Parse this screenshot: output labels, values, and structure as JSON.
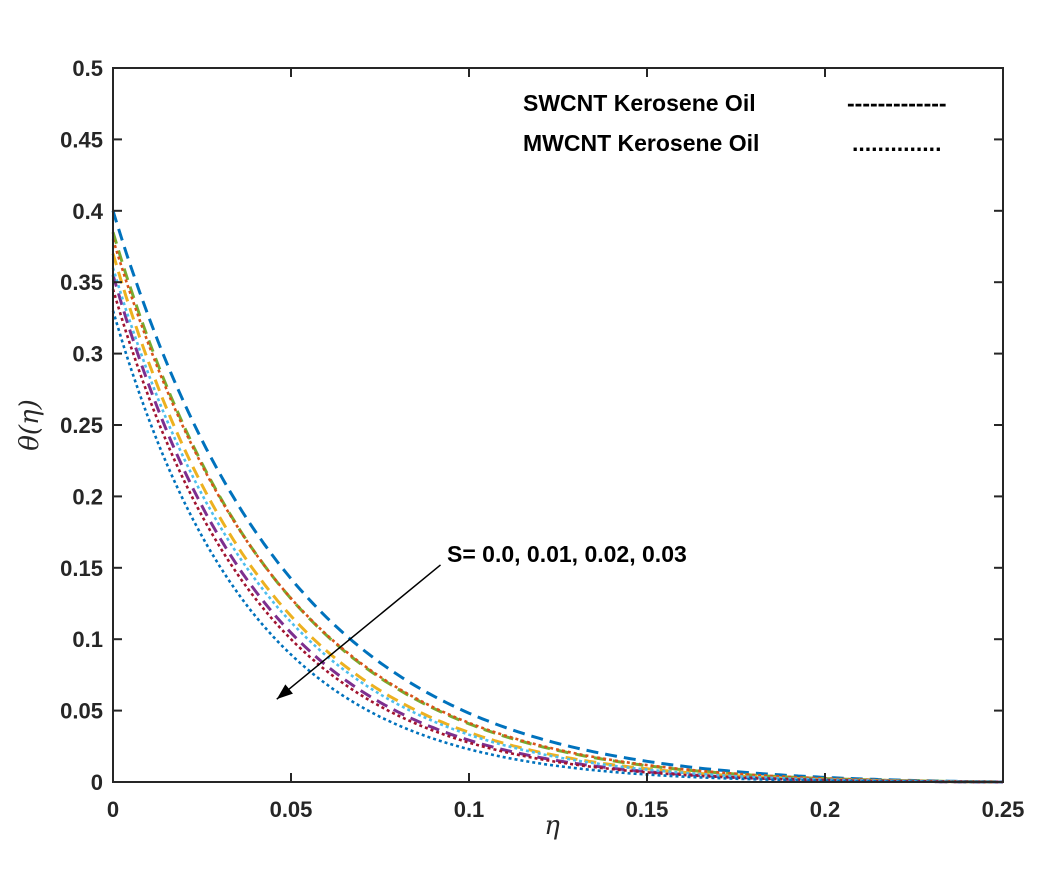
{
  "chart_data": {
    "type": "line",
    "title": "",
    "xlabel": "η",
    "ylabel": "θ(η)",
    "xlim": [
      0,
      0.25
    ],
    "ylim": [
      0,
      0.5
    ],
    "xticks": [
      0,
      0.05,
      0.1,
      0.15,
      0.2,
      0.25
    ],
    "xtick_labels": [
      "0",
      "0.05",
      "0.1",
      "0.15",
      "0.2",
      "0.25"
    ],
    "yticks": [
      0,
      0.05,
      0.1,
      0.15,
      0.2,
      0.25,
      0.3,
      0.35,
      0.4,
      0.45,
      0.5
    ],
    "ytick_labels": [
      "0",
      "0.05",
      "0.1",
      "0.15",
      "0.2",
      "0.25",
      "0.3",
      "0.35",
      "0.4",
      "0.45",
      "0.5"
    ],
    "grid": false,
    "legend": {
      "placement": "top-right",
      "entries": [
        {
          "label": "SWCNT Kerosene Oil",
          "sample": "-------------"
        },
        {
          "label": "MWCNT Kerosene Oil",
          "sample": ".............."
        }
      ]
    },
    "annotation": {
      "text": "S= 0.0, 0.01, 0.02, 0.03",
      "arrow_from": [
        0.092,
        0.152
      ],
      "arrow_to": [
        0.046,
        0.058
      ]
    },
    "series": [
      {
        "name": "SWCNT S=0.0",
        "fluid": "SWCNT",
        "S": 0.0,
        "color": "#0072BD",
        "style": "dashed",
        "theta0": 0.4,
        "decay": 20.5
      },
      {
        "name": "SWCNT S=0.01",
        "fluid": "SWCNT",
        "S": 0.01,
        "color": "#77AC30",
        "style": "dashed",
        "theta0": 0.385,
        "decay": 21.8
      },
      {
        "name": "SWCNT S=0.02",
        "fluid": "SWCNT",
        "S": 0.02,
        "color": "#EDB120",
        "style": "dashed",
        "theta0": 0.37,
        "decay": 23.0
      },
      {
        "name": "SWCNT S=0.03",
        "fluid": "SWCNT",
        "S": 0.03,
        "color": "#7E2F8E",
        "style": "dashed",
        "theta0": 0.355,
        "decay": 24.3
      },
      {
        "name": "MWCNT S=0.0",
        "fluid": "MWCNT",
        "S": 0.0,
        "color": "#D95319",
        "style": "dotted",
        "theta0": 0.38,
        "decay": 21.5
      },
      {
        "name": "MWCNT S=0.01",
        "fluid": "MWCNT",
        "S": 0.01,
        "color": "#4DBEEE",
        "style": "dotted",
        "theta0": 0.36,
        "decay": 23.2
      },
      {
        "name": "MWCNT S=0.02",
        "fluid": "MWCNT",
        "S": 0.02,
        "color": "#A2142F",
        "style": "dotted",
        "theta0": 0.345,
        "decay": 24.6
      },
      {
        "name": "MWCNT S=0.03",
        "fluid": "MWCNT",
        "S": 0.03,
        "color": "#0072BD",
        "style": "dotted",
        "theta0": 0.33,
        "decay": 26.0
      }
    ]
  }
}
